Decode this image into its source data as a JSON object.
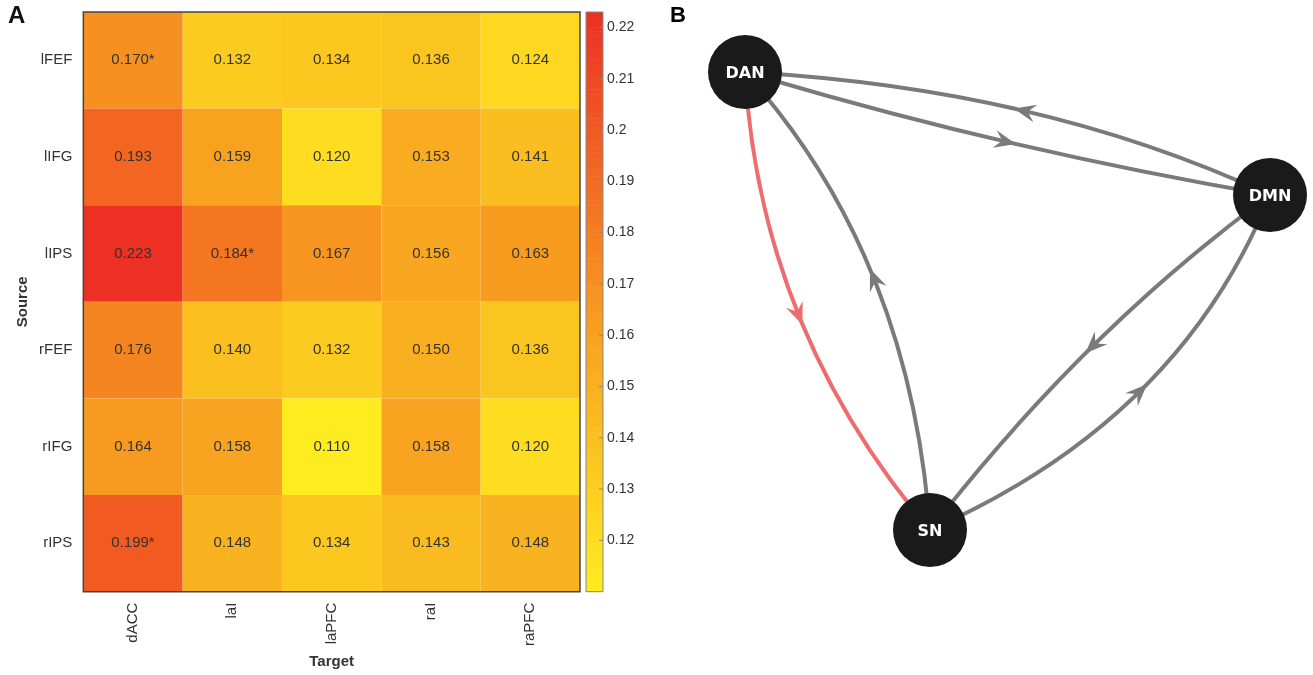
{
  "chart_data": [
    {
      "type": "heatmap",
      "title": "A",
      "xlabel": "Target",
      "ylabel": "Source",
      "categories": [
        "dACC",
        "laI",
        "laPFC",
        "raI",
        "raPFC"
      ],
      "y_categories": [
        "lFEF",
        "lIFG",
        "lIPS",
        "rFEF",
        "rIFG",
        "rIPS"
      ],
      "cells": [
        [
          0.17,
          0.132,
          0.134,
          0.136,
          0.124
        ],
        [
          0.193,
          0.159,
          0.12,
          0.153,
          0.141
        ],
        [
          0.223,
          0.184,
          0.167,
          0.156,
          0.163
        ],
        [
          0.176,
          0.14,
          0.132,
          0.15,
          0.136
        ],
        [
          0.164,
          0.158,
          0.11,
          0.158,
          0.12
        ],
        [
          0.199,
          0.148,
          0.134,
          0.143,
          0.148
        ]
      ],
      "cell_labels": [
        [
          "0.170*",
          "0.132",
          "0.134",
          "0.136",
          "0.124"
        ],
        [
          "0.193",
          "0.159",
          "0.120",
          "0.153",
          "0.141"
        ],
        [
          "0.223",
          "0.184*",
          "0.167",
          "0.156",
          "0.163"
        ],
        [
          "0.176",
          "0.140",
          "0.132",
          "0.150",
          "0.136"
        ],
        [
          "0.164",
          "0.158",
          "0.110",
          "0.158",
          "0.120"
        ],
        [
          "0.199*",
          "0.148",
          "0.134",
          "0.143",
          "0.148"
        ]
      ],
      "clim": [
        0.11,
        0.223
      ],
      "cticks": [
        0.12,
        0.13,
        0.14,
        0.15,
        0.16,
        0.17,
        0.18,
        0.19,
        0.2,
        0.21,
        0.22
      ]
    },
    {
      "type": "other",
      "title": "B",
      "annotations": [
        "DAN",
        "DMN",
        "SN"
      ]
    }
  ]
}
